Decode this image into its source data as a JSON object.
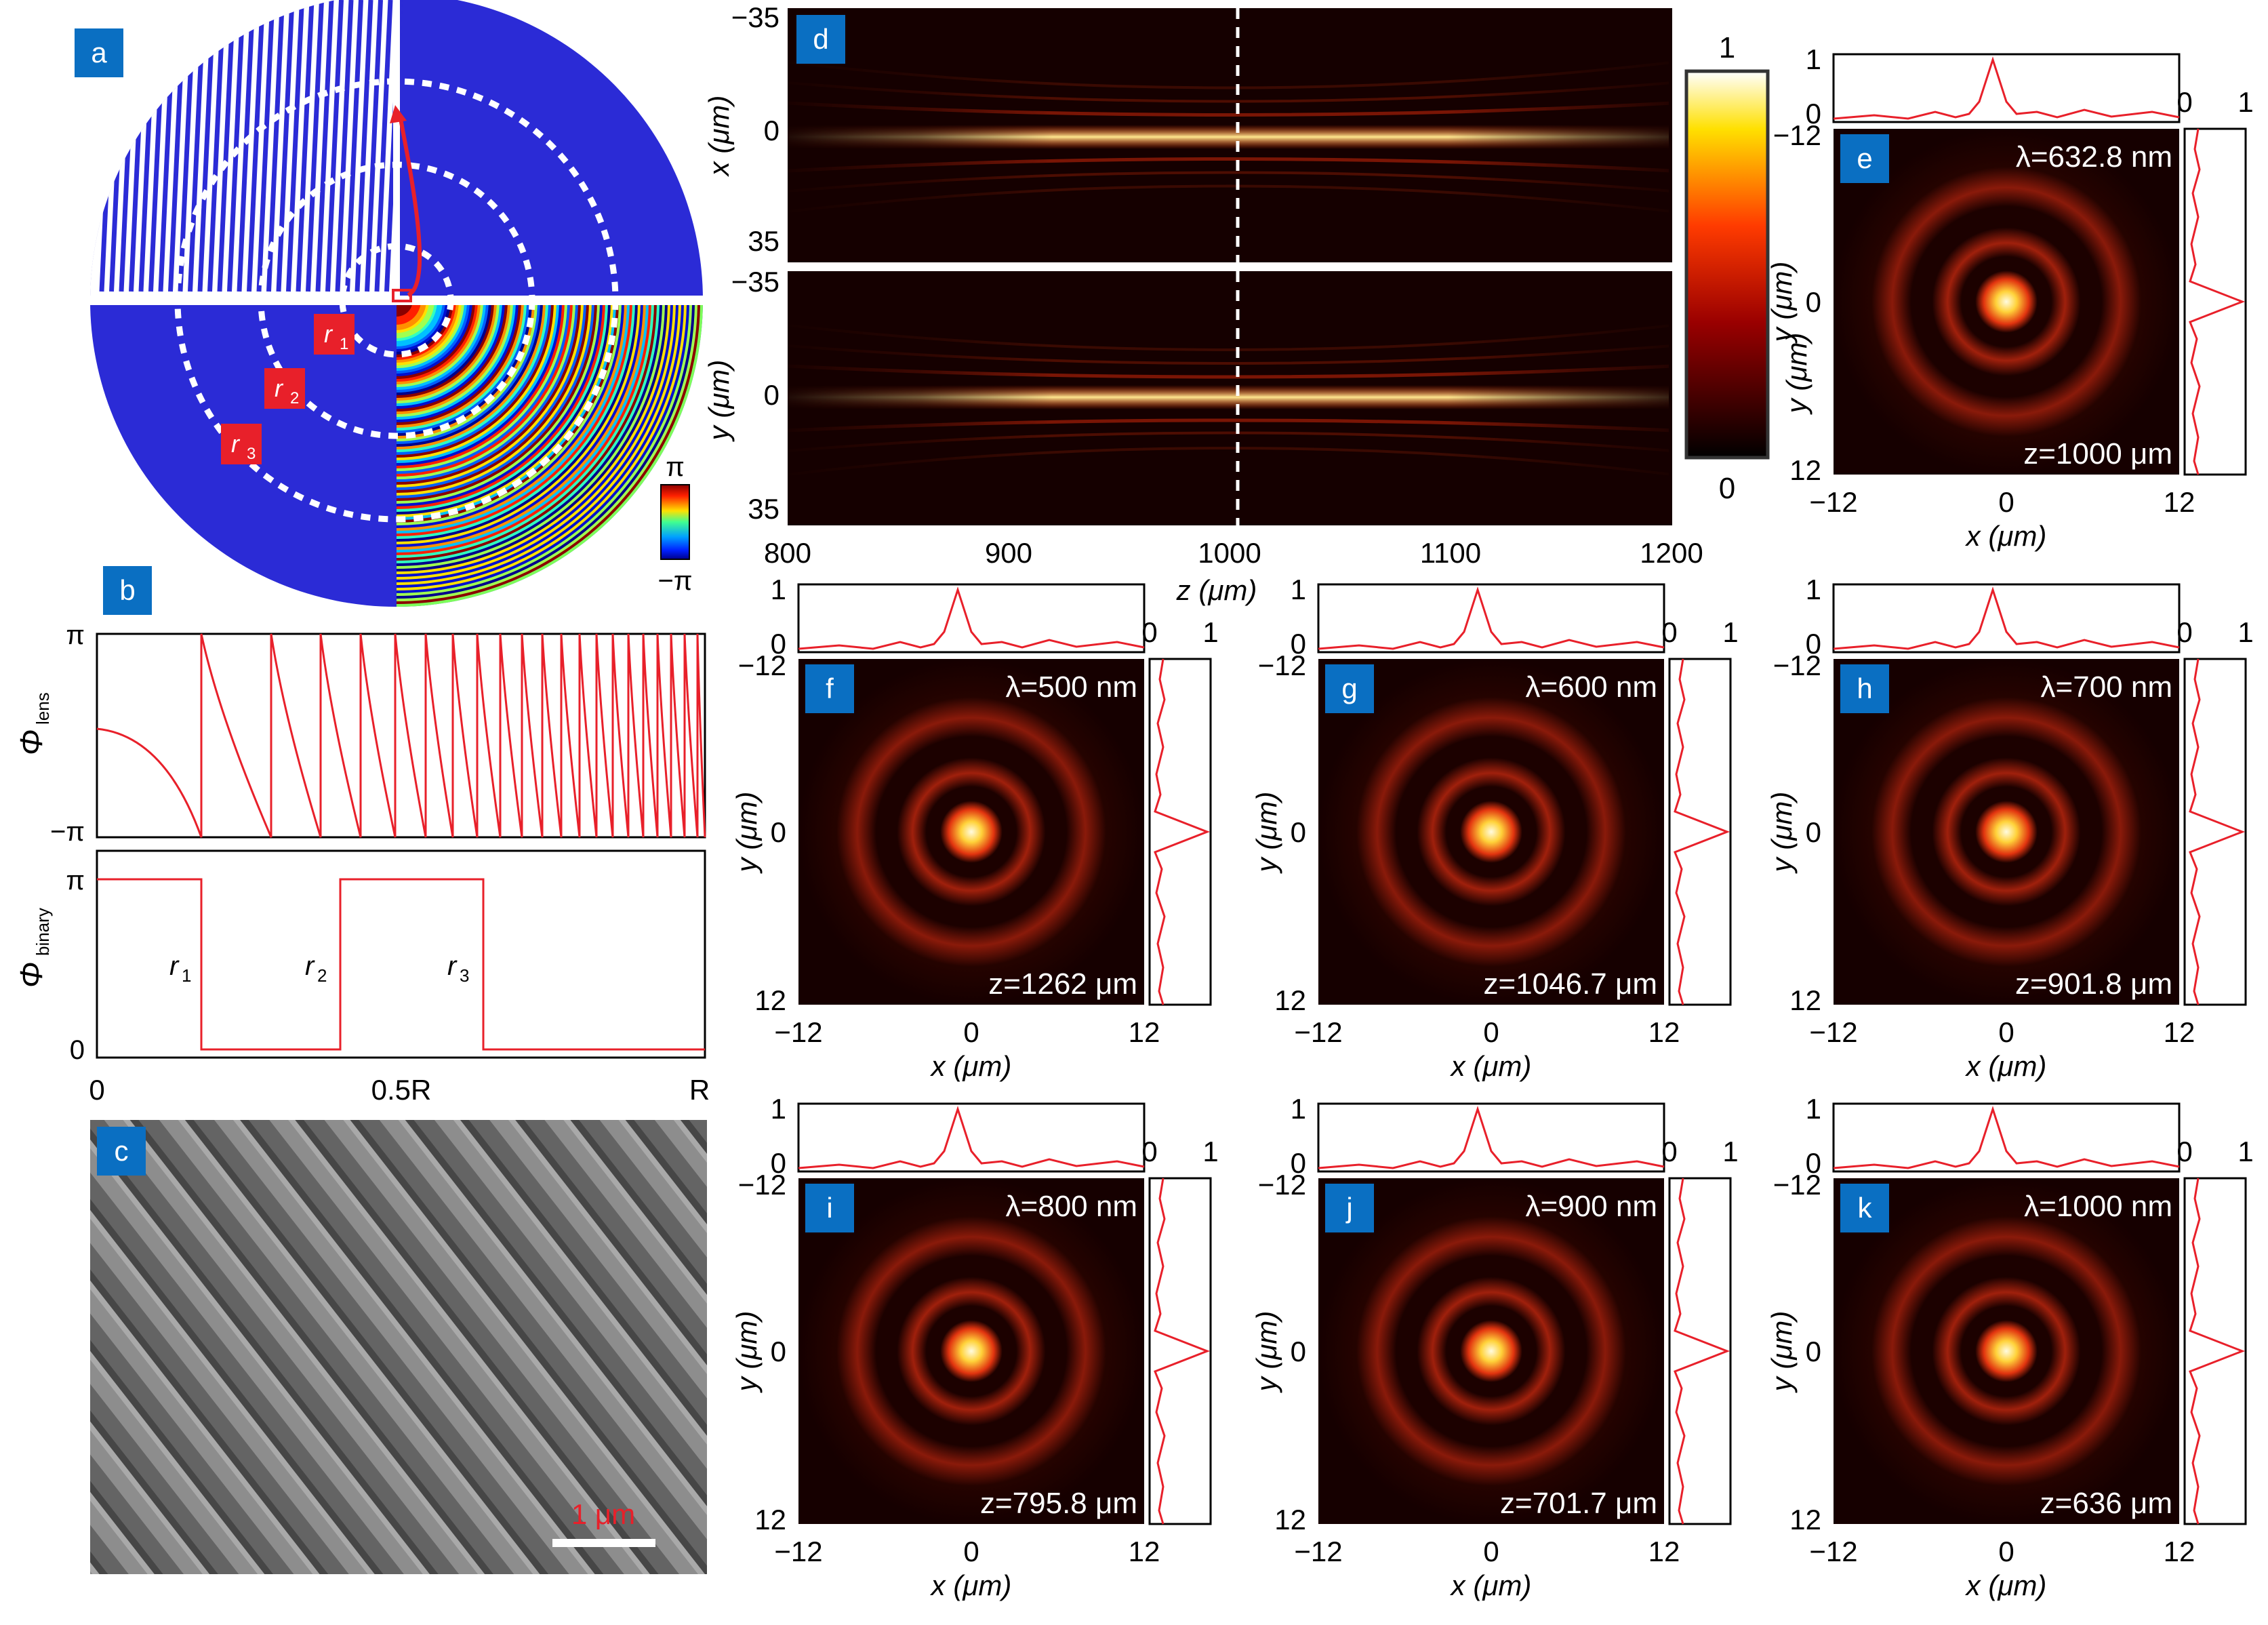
{
  "panels": {
    "a": {
      "badge": "a",
      "r_labels": [
        {
          "base": "r",
          "sub": "1"
        },
        {
          "base": "r",
          "sub": "2"
        },
        {
          "base": "r",
          "sub": "3"
        }
      ],
      "colorbar_top": "π",
      "colorbar_bottom": "−π"
    },
    "b": {
      "badge": "b",
      "top_ylabel_base": "Φ",
      "top_ylabel_sub": "lens",
      "top_yticks": [
        "π",
        "−π"
      ],
      "bot_ylabel_base": "Φ",
      "bot_ylabel_sub": "binary",
      "bot_yticks": [
        "π",
        "0"
      ],
      "xticks": [
        "0",
        "0.5R",
        "R"
      ],
      "r_labels": [
        {
          "base": "r",
          "sub": "1"
        },
        {
          "base": "r",
          "sub": "2"
        },
        {
          "base": "r",
          "sub": "3"
        }
      ]
    },
    "c": {
      "badge": "c",
      "scalebar_label": "1 μm"
    },
    "d": {
      "badge": "d",
      "top_ylabel": "x (μm)",
      "bot_ylabel": "y (μm)",
      "yticks": [
        "−35",
        "0",
        "35"
      ],
      "xticks": [
        "800",
        "900",
        "1000",
        "1100",
        "1200"
      ],
      "xlabel": "z (μm)",
      "colorbar_ticks": [
        "1",
        "0"
      ],
      "colorbar_label": "y (μm)"
    }
  },
  "spot_common": {
    "xlabel": "x (μm)",
    "ylabel": "y (μm)",
    "ticks": [
      "−12",
      "0",
      "12"
    ],
    "profile_ticks_y": [
      "1",
      "0"
    ],
    "profile_ticks_x": [
      "0",
      "1"
    ]
  },
  "spots": [
    {
      "id": "e",
      "lambda": "λ=632.8 nm",
      "z": "z=1000 μm"
    },
    {
      "id": "f",
      "lambda": "λ=500 nm",
      "z": "z=1262 μm"
    },
    {
      "id": "g",
      "lambda": "λ=600 nm",
      "z": "z=1046.7 μm"
    },
    {
      "id": "h",
      "lambda": "λ=700 nm",
      "z": "z=901.8 μm"
    },
    {
      "id": "i",
      "lambda": "λ=800 nm",
      "z": "z=795.8 μm"
    },
    {
      "id": "j",
      "lambda": "λ=900 nm",
      "z": "z=701.7 μm"
    },
    {
      "id": "k",
      "lambda": "λ=1000 nm",
      "z": "z=636 μm"
    }
  ],
  "colors": {
    "badge": "#0a6fc2",
    "blue": "#2b2bd6",
    "red": "#e8202a",
    "green": "#7dff5a"
  }
}
